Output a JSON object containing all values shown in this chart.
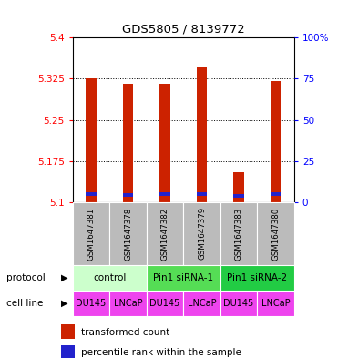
{
  "title": "GDS5805 / 8139772",
  "samples": [
    "GSM1647381",
    "GSM1647378",
    "GSM1647382",
    "GSM1647379",
    "GSM1647383",
    "GSM1647380"
  ],
  "red_values": [
    5.325,
    5.315,
    5.315,
    5.345,
    5.155,
    5.32
  ],
  "blue_values": [
    5.115,
    5.113,
    5.115,
    5.115,
    5.112,
    5.115
  ],
  "y_min": 5.1,
  "y_max": 5.4,
  "y_ticks_left": [
    5.1,
    5.175,
    5.25,
    5.325,
    5.4
  ],
  "y_ticks_right_pos": [
    0,
    25,
    50,
    75,
    100
  ],
  "y_ticks_right_labels": [
    "0",
    "25",
    "50",
    "75",
    "100%"
  ],
  "protocol_groups": [
    {
      "label": "control",
      "start": 0,
      "end": 2,
      "color": "#ccffcc"
    },
    {
      "label": "Pin1 siRNA-1",
      "start": 2,
      "end": 4,
      "color": "#55dd55"
    },
    {
      "label": "Pin1 siRNA-2",
      "start": 4,
      "end": 6,
      "color": "#22cc44"
    }
  ],
  "cell_lines": [
    "DU145",
    "LNCaP",
    "DU145",
    "LNCaP",
    "DU145",
    "LNCaP"
  ],
  "cell_line_color": "#ee44ee",
  "sample_bg_color": "#bbbbbb",
  "bar_color_red": "#cc2200",
  "bar_color_blue": "#2222cc",
  "bar_width": 0.28,
  "figsize": [
    3.71,
    3.93
  ],
  "dpi": 100
}
